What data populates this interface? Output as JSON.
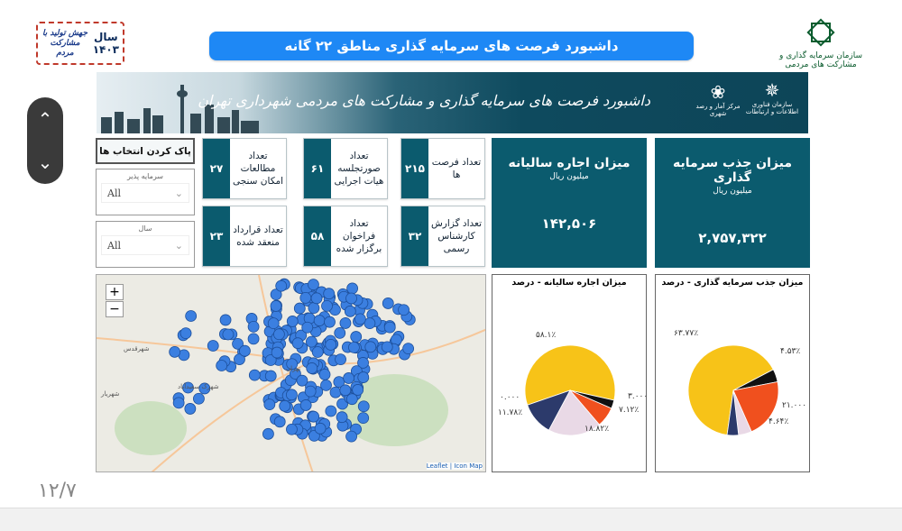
{
  "header": {
    "title": "داشبورد فرصت های سرمایه گذاری مناطق ۲۲ گانه",
    "year_label": "سال",
    "year": "۱۴۰۳",
    "slogan": "جهش تولید با مشارکت مردم",
    "org_name": "سازمان سرمایه گذاری و مشارکت های مردمی"
  },
  "banner": {
    "title": "داشبورد فرصت های سرمایه گذاری و مشارکت های مردمی شهرداری تهران",
    "logo1": "مرکز آمار و رصد شهری",
    "logo2": "سازمان فناوری اطلاعات و ارتباطات"
  },
  "filters": {
    "clear_label": "پاک کردن انتخاب ها",
    "investee_label": "سرمایه پذیر",
    "investee_value": "All",
    "year_label": "سال",
    "year_value": "All"
  },
  "kpis": [
    {
      "label": "تعداد فرصت ها",
      "value": "۲۱۵"
    },
    {
      "label": "تعداد صورتجلسه هیات اجرایی",
      "value": "۶۱"
    },
    {
      "label": "تعداد مطالعات امکان سنجی",
      "value": "۲۷"
    },
    {
      "label": "تعداد گزارش کارشناس رسمی",
      "value": "۳۲"
    },
    {
      "label": "تعداد فراخوان برگزار شده",
      "value": "۵۸"
    },
    {
      "label": "تعداد قرارداد منعقد شده",
      "value": "۲۳"
    }
  ],
  "big_cards": [
    {
      "title": "میزان جذب سرمایه گذاری",
      "unit": "میلیون ریال",
      "value": "۲,۷۵۷,۳۲۲"
    },
    {
      "title": "میزان اجاره سالیانه",
      "unit": "میلیون ریال",
      "value": "۱۴۲,۵۰۶"
    }
  ],
  "map": {
    "zoom_in": "+",
    "zoom_out": "−",
    "attribution": "Leaflet | Icon Map",
    "places": [
      "شهرقدس",
      "شهرک سعیدآباد",
      "تهران",
      "شهریار"
    ]
  },
  "colors": {
    "teal": "#0b5b6e",
    "title_blue": "#1e88f5",
    "dot": "#3b7fe0",
    "yellow": "#f7c318",
    "black": "#111111",
    "orange": "#f0501e",
    "pink": "#e9d9e6",
    "navy": "#2c3a6b"
  },
  "chart_data": [
    {
      "type": "pie",
      "title": "میزان جذب سرمایه گذاری - درصد",
      "slices": [
        {
          "label": "۶۳.۷۷٪",
          "value": 63.77,
          "color": "#f7c318"
        },
        {
          "label": "۴.۵۳٪",
          "value": 4.53,
          "color": "#111111"
        },
        {
          "label": "۲۱.۰۰۰",
          "value": 21.0,
          "color": "#f0501e"
        },
        {
          "label": "۴.۶۴٪",
          "value": 4.64,
          "color": "#e9d9e6"
        },
        {
          "label": "",
          "value": 4.0,
          "color": "#2c3a6b"
        }
      ]
    },
    {
      "type": "pie",
      "title": "میزان اجاره سالیانه - درصد",
      "slices": [
        {
          "label": "۵۸.۱٪",
          "value": 58.1,
          "color": "#f7c318"
        },
        {
          "label": "۳.۰۰۰",
          "value": 3.0,
          "color": "#111111"
        },
        {
          "label": "۷.۱۲٪",
          "value": 7.12,
          "color": "#f0501e"
        },
        {
          "label": "۱۸.۸۲٪",
          "value": 18.82,
          "color": "#e9d9e6"
        },
        {
          "label": "۱۱.۷۸٪",
          "value": 11.78,
          "color": "#2c3a6b"
        },
        {
          "label": "۰.۰۰۰",
          "value": 0.0,
          "color": "#ffffff"
        }
      ]
    }
  ],
  "footer": {
    "page": "۱۲/۷"
  }
}
